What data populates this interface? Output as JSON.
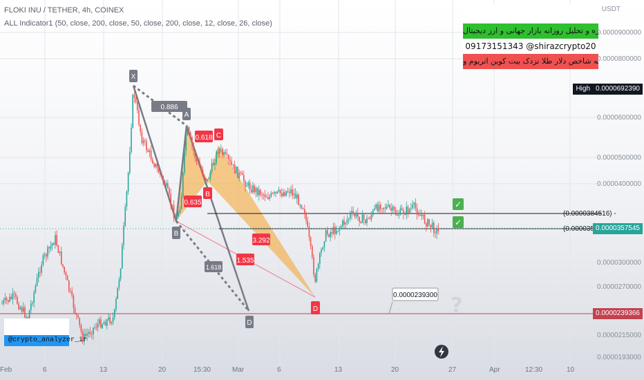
{
  "header": {
    "title": "FLOKI INU / TETHER, 4h, COINEX",
    "indicator": "ALL Indicator1 (50, close, 200, close, 50, close, 200, close, 12, close, 26, close)"
  },
  "info_box": {
    "line1": "جهت آموزش و مشاوره و تحلیل روزانه بازار جهانی و ارز دیجیتال",
    "line2": "09173151343  @shirazcrypto20",
    "line3": "تحلیل روزانه شاخص دلار طلا نزدک بیت کوین اتریوم و ...",
    "color1": "#2fbf2f",
    "color2": "#ffffff",
    "color3": "#f05050"
  },
  "user_tag": {
    "label": "@crypto_analyzer_ir",
    "color": "#2196f3"
  },
  "axis": {
    "currency": "USDT",
    "y_ticks": [
      "0.0000900000",
      "0.0000800000",
      "0.0000600000",
      "0.0000500000",
      "0.0000400000",
      "0.0000300000",
      "0.0000270000",
      "0.0000215000",
      "0.0000193000"
    ],
    "x_ticks": [
      "Feb",
      "6",
      "13",
      "20",
      "15:30",
      "Mar",
      "6",
      "13",
      "20",
      "27",
      "Apr",
      "12:30",
      "10"
    ]
  },
  "price_tags": {
    "high_label": "High",
    "high_value": "0.0000692390",
    "current_value": "0.0000357545",
    "low_value": "0.0000239366",
    "current_color": "#26a69a",
    "low_color": "#c2424f",
    "high_color": "#131722"
  },
  "levels": {
    "upper": "(0.0000384516) -",
    "lower": "(0.0000357228) -",
    "callout": "0.0000239300",
    "question": "?",
    "check": "✓"
  },
  "pattern": {
    "points": [
      "X",
      "A",
      "B",
      "C",
      "D"
    ],
    "ratios_outer": [
      "0.886",
      "1.618"
    ],
    "ratios": [
      "0.618",
      "0.635",
      "3.292",
      "1.535"
    ],
    "point_labels": [
      "B",
      "C",
      "D"
    ],
    "colors": {
      "fill": "#f5a32a",
      "ratio_label": "#f23645",
      "gray": "#787b86"
    }
  },
  "chart_data": {
    "type": "candlestick",
    "title": "FLOKI INU / TETHER, 4h, COINEX",
    "y_unit": "USDT",
    "harmonic_pattern": {
      "X": 6.9239e-05,
      "A": 3.52e-05,
      "B": 6.1e-05,
      "C": 5.7e-05,
      "D": 2.39366e-05
    },
    "levels": [
      3.84516e-05,
      3.57228e-05,
      2.39366e-05,
      2.393e-05
    ],
    "last_price": 3.57545e-05,
    "high": 6.9239e-05
  }
}
